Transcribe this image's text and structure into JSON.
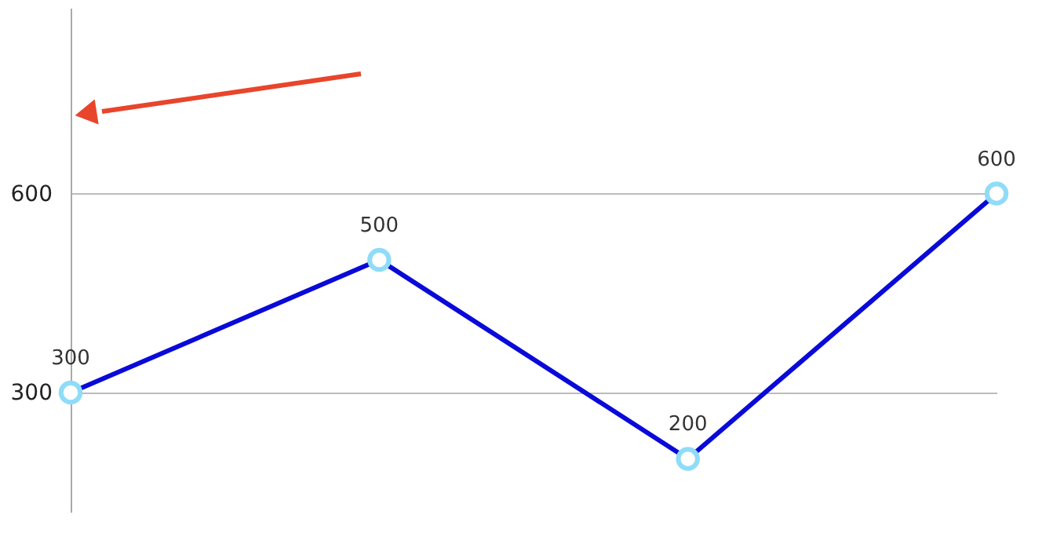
{
  "chart_data": {
    "type": "line",
    "categories": [
      null,
      null,
      null,
      null
    ],
    "series": [
      {
        "color": "#0a0ad8",
        "values": [
          300,
          500,
          200,
          600
        ]
      }
    ],
    "ylim": [
      120,
      880
    ],
    "yticks": [
      300,
      600
    ],
    "grid": "y",
    "tick_labels": "y",
    "marker": "circle",
    "data_labels": true
  }
}
